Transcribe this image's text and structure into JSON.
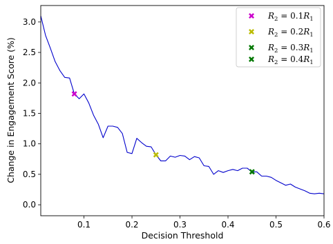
{
  "chart_data": {
    "type": "line",
    "title": "",
    "xlabel": "Decision Threshold",
    "ylabel": "Change in Engagement Score (%)",
    "xlim": [
      0.01,
      0.6
    ],
    "ylim": [
      -0.18,
      3.27
    ],
    "xticks": [
      0.1,
      0.2,
      0.3,
      0.4,
      0.5,
      0.6
    ],
    "xtick_labels": [
      "0.1",
      "0.2",
      "0.3",
      "0.4",
      "0.5",
      "0.6"
    ],
    "yticks": [
      0.0,
      0.5,
      1.0,
      1.5,
      2.0,
      2.5,
      3.0
    ],
    "ytick_labels": [
      "0.0",
      "0.5",
      "1.0",
      "1.5",
      "2.0",
      "2.5",
      "3.0"
    ],
    "grid": false,
    "legend_position": "top-right",
    "series": [
      {
        "color": "#0000cc",
        "x": [
          0.01,
          0.02,
          0.03,
          0.04,
          0.05,
          0.06,
          0.07,
          0.08,
          0.09,
          0.1,
          0.11,
          0.12,
          0.13,
          0.14,
          0.15,
          0.16,
          0.17,
          0.18,
          0.19,
          0.2,
          0.21,
          0.22,
          0.23,
          0.24,
          0.25,
          0.26,
          0.27,
          0.28,
          0.29,
          0.3,
          0.31,
          0.32,
          0.33,
          0.34,
          0.35,
          0.36,
          0.37,
          0.38,
          0.39,
          0.4,
          0.41,
          0.42,
          0.43,
          0.44,
          0.45,
          0.46,
          0.47,
          0.48,
          0.49,
          0.5,
          0.51,
          0.52,
          0.53,
          0.54,
          0.55,
          0.56,
          0.57,
          0.58,
          0.59,
          0.6
        ],
        "y": [
          3.1,
          2.78,
          2.57,
          2.35,
          2.2,
          2.09,
          2.08,
          1.82,
          1.74,
          1.82,
          1.67,
          1.47,
          1.32,
          1.1,
          1.29,
          1.29,
          1.27,
          1.17,
          0.86,
          0.84,
          1.09,
          1.02,
          0.96,
          0.95,
          0.82,
          0.72,
          0.72,
          0.8,
          0.78,
          0.81,
          0.8,
          0.74,
          0.79,
          0.77,
          0.64,
          0.63,
          0.5,
          0.56,
          0.53,
          0.56,
          0.58,
          0.56,
          0.6,
          0.6,
          0.54,
          0.54,
          0.47,
          0.47,
          0.45,
          0.4,
          0.36,
          0.32,
          0.34,
          0.29,
          0.26,
          0.23,
          0.19,
          0.18,
          0.19,
          0.18
        ]
      }
    ],
    "markers": [
      {
        "label": "$R_2 = 0.1R_1$",
        "x": 0.08,
        "y": 1.82,
        "color": "#cc00cc"
      },
      {
        "label": "$R_2 = 0.2R_1$",
        "x": 0.25,
        "y": 0.82,
        "color": "#bbbb00"
      },
      {
        "label": "$R_2 = 0.3R_1$",
        "x": 0.45,
        "y": 0.54,
        "color": "#007700"
      },
      {
        "label": "$R_2 = 0.4R_1$",
        "x": 0.45,
        "y": 0.54,
        "color": "#007700"
      }
    ],
    "legend": [
      {
        "label_lhs": "R",
        "label_sub": "2",
        "label_rhs": " = 0.1R",
        "label_sub2": "1",
        "color": "#cc00cc"
      },
      {
        "label_lhs": "R",
        "label_sub": "2",
        "label_rhs": " = 0.2R",
        "label_sub2": "1",
        "color": "#bbbb00"
      },
      {
        "label_lhs": "R",
        "label_sub": "2",
        "label_rhs": " = 0.3R",
        "label_sub2": "1",
        "color": "#007700"
      },
      {
        "label_lhs": "R",
        "label_sub": "2",
        "label_rhs": " = 0.4R",
        "label_sub2": "1",
        "color": "#007700"
      }
    ]
  }
}
